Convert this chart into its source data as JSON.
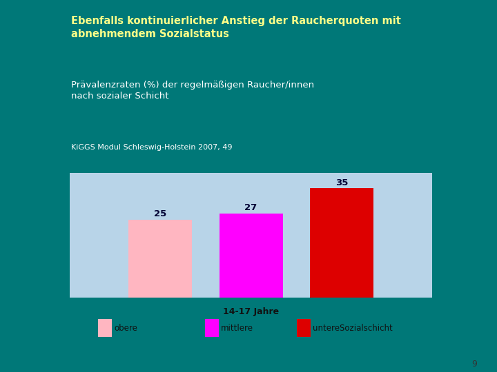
{
  "title_bold": "Ebenfalls kontinuierlicher Anstieg der Raucherquoten mit\nabnehmendem Sozialstatus",
  "subtitle": "Prävalenzraten (%) der regelmäßigen Raucher/innen\nnach sozialer Schicht",
  "source": "KiGGS Modul Schleswig-Holstein 2007, 49",
  "xlabel": "14-17 Jahre",
  "series": [
    {
      "label": "obere",
      "value": 25,
      "color": "#FFB6C1"
    },
    {
      "label": "mittlere",
      "value": 27,
      "color": "#FF00FF"
    },
    {
      "label": "untereSozialschicht",
      "value": 35,
      "color": "#DD0000"
    }
  ],
  "background_outer": "#007878",
  "background_header": "#000077",
  "background_chart": "#B8D4E8",
  "background_white": "#FFFFFF",
  "title_color": "#FFFF88",
  "subtitle_color": "#FFFFFF",
  "source_color": "#FFFFFF",
  "page_number": "9",
  "ylim": [
    0,
    40
  ],
  "bar_positions": [
    0.3,
    0.5,
    0.7
  ],
  "bar_width": 0.14
}
